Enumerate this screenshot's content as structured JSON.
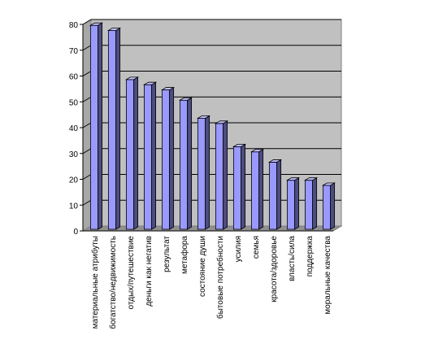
{
  "chart_data": {
    "type": "bar",
    "style": "3d-clustered-column",
    "title": "",
    "xlabel": "",
    "ylabel": "",
    "ylim": [
      0,
      80
    ],
    "y_ticks": [
      "0",
      "10",
      "20",
      "30",
      "40",
      "50",
      "60",
      "70",
      "80"
    ],
    "grid": true,
    "legend": "none",
    "categories": [
      "материальные атрибуты",
      "богатство/недвижимость",
      "отдых/путешествие",
      "деньги как негатив",
      "результат",
      "метафора",
      "состояние души",
      "бытовые потребности",
      "усилия",
      "семья",
      "красота/здоровье",
      "власть/сила",
      "поддержка",
      "моральные качества"
    ],
    "values": [
      79,
      77,
      58,
      56,
      54,
      50,
      43,
      41,
      32,
      30,
      26,
      19,
      19,
      17
    ],
    "colors": {
      "plot_background": "#c0c0c0",
      "bar_front": "#9999ff",
      "bar_side": "#4d4d80",
      "bar_top": "#c2c2ff",
      "gridline": "#000000"
    }
  }
}
